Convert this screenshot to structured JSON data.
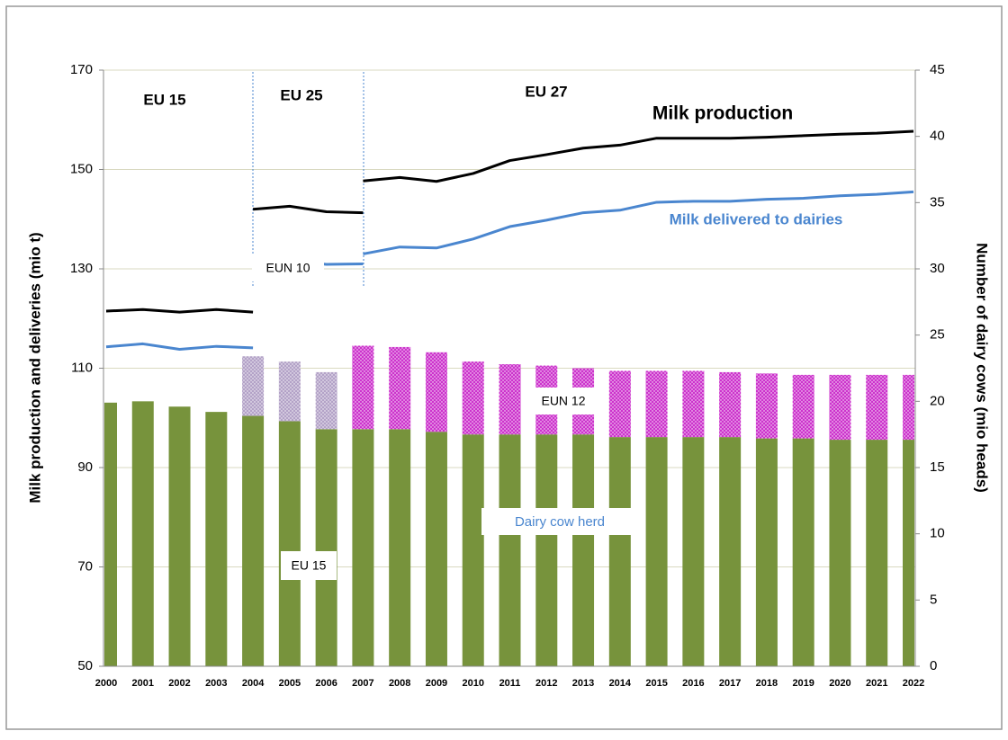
{
  "chart_data": {
    "type": "combo",
    "categories": [
      "2000",
      "2001",
      "2002",
      "2003",
      "2004",
      "2005",
      "2006",
      "2007",
      "2008",
      "2009",
      "2010",
      "2011",
      "2012",
      "2013",
      "2014",
      "2015",
      "2016",
      "2017",
      "2018",
      "2019",
      "2020",
      "2021",
      "2022"
    ],
    "y_label": "Milk production and deliveries (mio t)",
    "y2_label": "Number of dairy cows (mio heads)",
    "ylim": [
      50,
      170
    ],
    "yticks": [
      50,
      70,
      90,
      110,
      130,
      150,
      170
    ],
    "y2lim": [
      0,
      45
    ],
    "y2ticks": [
      0,
      5,
      10,
      15,
      20,
      25,
      30,
      35,
      40,
      45
    ],
    "grid": true,
    "annotations": [
      "EU 15",
      "EU 25",
      "EU 27",
      "Dairy  cow herd"
    ],
    "series": [
      {
        "name": "EU 15",
        "color": "#77933c",
        "axis": "y2",
        "pattern": "solid",
        "values": [
          19.9,
          20.0,
          19.6,
          19.2,
          18.9,
          18.5,
          17.9,
          17.9,
          17.9,
          17.7,
          17.5,
          17.5,
          17.5,
          17.5,
          17.3,
          17.3,
          17.3,
          17.3,
          17.2,
          17.2,
          17.1,
          17.1,
          17.1
        ]
      },
      {
        "name": "EUN 10",
        "color": "#b3a2c7",
        "axis": "y2",
        "pattern": "dots",
        "values": [
          null,
          null,
          null,
          null,
          4.5,
          4.5,
          4.3,
          null,
          null,
          null,
          null,
          null,
          null,
          null,
          null,
          null,
          null,
          null,
          null,
          null,
          null,
          null,
          null
        ]
      },
      {
        "name": "EUN 12",
        "color": "#cc33cc",
        "axis": "y2",
        "pattern": "dots",
        "values": [
          null,
          null,
          null,
          null,
          null,
          null,
          null,
          6.3,
          6.2,
          6.0,
          5.5,
          5.3,
          5.2,
          5.0,
          5.0,
          5.0,
          5.0,
          4.9,
          4.9,
          4.8,
          4.9,
          4.9,
          4.9
        ]
      }
    ],
    "lines": [
      {
        "name": "Milk production",
        "color": "#000000",
        "pieces": [
          [
            121.5,
            121.8,
            121.3,
            121.8,
            121.3,
            null,
            null,
            null,
            null,
            null,
            null,
            null,
            null,
            null,
            null,
            null,
            null,
            null,
            null,
            null,
            null,
            null,
            null
          ],
          [
            null,
            null,
            null,
            null,
            142.0,
            142.6,
            141.5,
            141.3,
            null,
            null,
            null,
            null,
            null,
            null,
            null,
            null,
            null,
            null,
            null,
            null,
            null,
            null,
            null
          ],
          [
            null,
            null,
            null,
            null,
            null,
            null,
            null,
            147.7,
            148.4,
            147.6,
            149.2,
            151.8,
            153.0,
            154.3,
            154.9,
            156.3,
            156.3,
            156.3,
            156.5,
            156.8,
            157.1,
            157.3,
            157.7
          ]
        ]
      },
      {
        "name": "Milk delivered to dairies",
        "color": "#4a86cf",
        "pieces": [
          [
            114.3,
            114.9,
            113.8,
            114.4,
            114.1,
            null,
            null,
            null,
            null,
            null,
            null,
            null,
            null,
            null,
            null,
            null,
            null,
            null,
            null,
            null,
            null,
            null,
            null
          ],
          [
            null,
            null,
            null,
            null,
            130.3,
            131.6,
            130.9,
            131.0,
            null,
            null,
            null,
            null,
            null,
            null,
            null,
            null,
            null,
            null,
            null,
            null,
            null,
            null,
            null
          ],
          [
            null,
            null,
            null,
            null,
            null,
            null,
            null,
            133.0,
            134.4,
            134.2,
            136.0,
            138.5,
            139.8,
            141.3,
            141.8,
            143.4,
            143.6,
            143.6,
            144.0,
            144.2,
            144.7,
            145.0,
            145.5
          ]
        ]
      }
    ]
  }
}
